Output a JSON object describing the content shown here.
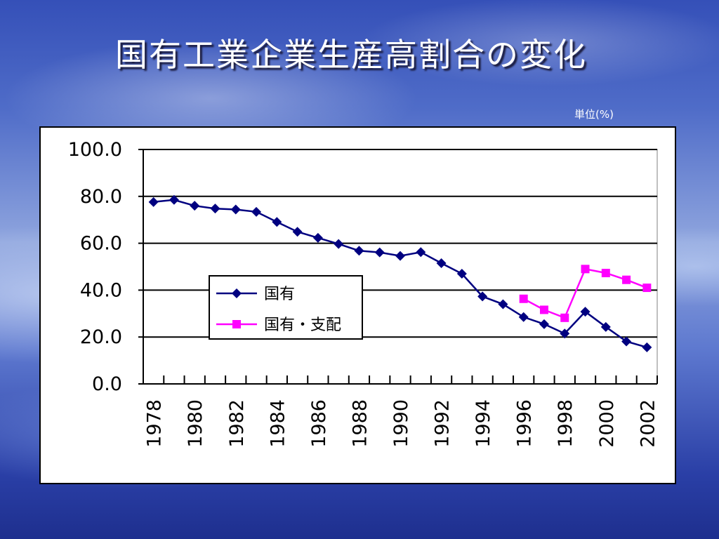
{
  "slide": {
    "title": "国有工業企業生産高割合の変化",
    "unit_note": "単位(%)"
  },
  "colors": {
    "series_state": "#000080",
    "series_state_controlled": "#ff00ff"
  },
  "chart_data": {
    "type": "line",
    "title": "",
    "xlabel": "",
    "ylabel": "",
    "ylim": [
      0,
      100
    ],
    "yticks": [
      "0.0",
      "20.0",
      "40.0",
      "60.0",
      "80.0",
      "100.0"
    ],
    "x": [
      1978,
      1979,
      1980,
      1981,
      1982,
      1983,
      1984,
      1985,
      1986,
      1987,
      1988,
      1989,
      1990,
      1991,
      1992,
      1993,
      1994,
      1995,
      1996,
      1997,
      1998,
      1999,
      2000,
      2001,
      2002
    ],
    "xtick_labels": [
      "1978",
      "1980",
      "1982",
      "1984",
      "1986",
      "1988",
      "1990",
      "1992",
      "1994",
      "1996",
      "1998",
      "2000",
      "2002"
    ],
    "grid": true,
    "legend_position": "center-left",
    "series": [
      {
        "name": "国有",
        "marker": "diamond",
        "color": "#000080",
        "values": [
          77.6,
          78.5,
          76.0,
          74.8,
          74.4,
          73.4,
          69.1,
          64.9,
          62.3,
          59.7,
          56.8,
          56.1,
          54.6,
          56.2,
          51.5,
          47.0,
          37.3,
          34.0,
          28.5,
          25.5,
          21.5,
          30.8,
          24.3,
          18.1,
          15.6
        ]
      },
      {
        "name": "国有・支配",
        "marker": "square",
        "color": "#ff00ff",
        "values": [
          null,
          null,
          null,
          null,
          null,
          null,
          null,
          null,
          null,
          null,
          null,
          null,
          null,
          null,
          null,
          null,
          null,
          null,
          36.3,
          31.6,
          28.2,
          49.0,
          47.3,
          44.4,
          41.0
        ]
      }
    ]
  }
}
